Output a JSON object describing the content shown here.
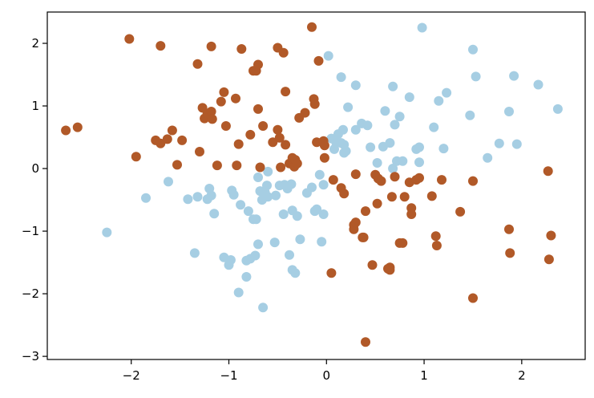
{
  "chart_data": {
    "type": "scatter",
    "title": "",
    "xlabel": "",
    "ylabel": "",
    "xlim": [
      -2.86,
      2.65
    ],
    "ylim": [
      -3.05,
      2.5
    ],
    "grid": false,
    "legend": "none",
    "x_ticks": [
      -2,
      -1,
      0,
      1,
      2
    ],
    "y_ticks": [
      -3,
      -2,
      -1,
      0,
      1,
      2
    ],
    "x_tick_labels": [
      "−2",
      "−1",
      "0",
      "1",
      "2"
    ],
    "y_tick_labels": [
      "−3",
      "−2",
      "−1",
      "0",
      "1",
      "2"
    ],
    "series": [
      {
        "color": "#a6cee3",
        "points": [
          [
            -2.25,
            -1.02
          ],
          [
            -1.85,
            -0.47
          ],
          [
            -1.62,
            -0.21
          ],
          [
            -1.42,
            -0.49
          ],
          [
            -1.35,
            -1.35
          ],
          [
            -1.32,
            -0.45
          ],
          [
            -1.22,
            -0.49
          ],
          [
            -1.2,
            -0.32
          ],
          [
            -1.18,
            -0.43
          ],
          [
            -1.15,
            -0.72
          ],
          [
            -1.05,
            -1.42
          ],
          [
            -1.0,
            -1.54
          ],
          [
            -0.98,
            -1.46
          ],
          [
            -0.97,
            -0.35
          ],
          [
            -0.95,
            -0.42
          ],
          [
            -0.9,
            -1.98
          ],
          [
            -0.88,
            -0.58
          ],
          [
            -0.82,
            -1.73
          ],
          [
            -0.82,
            -1.47
          ],
          [
            -0.8,
            -0.68
          ],
          [
            -0.78,
            -1.44
          ],
          [
            -0.75,
            -0.81
          ],
          [
            -0.73,
            -1.39
          ],
          [
            -0.72,
            -0.81
          ],
          [
            -0.7,
            -0.14
          ],
          [
            -0.7,
            -1.21
          ],
          [
            -0.68,
            -0.36
          ],
          [
            -0.66,
            -0.5
          ],
          [
            -0.65,
            -2.22
          ],
          [
            -0.63,
            -0.38
          ],
          [
            -0.61,
            -0.27
          ],
          [
            -0.6,
            -0.05
          ],
          [
            -0.6,
            -0.45
          ],
          [
            -0.53,
            -1.18
          ],
          [
            -0.52,
            -0.43
          ],
          [
            -0.48,
            -0.27
          ],
          [
            -0.44,
            -0.73
          ],
          [
            -0.43,
            -0.26
          ],
          [
            -0.4,
            -0.32
          ],
          [
            -0.38,
            -1.38
          ],
          [
            -0.36,
            -0.25
          ],
          [
            -0.35,
            -0.67
          ],
          [
            -0.35,
            -1.62
          ],
          [
            -0.32,
            -1.67
          ],
          [
            -0.3,
            -0.76
          ],
          [
            -0.27,
            -1.13
          ],
          [
            -0.2,
            -0.39
          ],
          [
            -0.15,
            -0.3
          ],
          [
            -0.12,
            -0.68
          ],
          [
            -0.1,
            -0.65
          ],
          [
            -0.07,
            -0.1
          ],
          [
            -0.05,
            -1.17
          ],
          [
            -0.03,
            -0.26
          ],
          [
            -0.03,
            -0.73
          ],
          [
            0.02,
            1.8
          ],
          [
            0.05,
            0.48
          ],
          [
            0.08,
            0.31
          ],
          [
            0.1,
            0.41
          ],
          [
            0.12,
            0.55
          ],
          [
            0.15,
            1.46
          ],
          [
            0.15,
            0.41
          ],
          [
            0.17,
            0.62
          ],
          [
            0.18,
            0.38
          ],
          [
            0.18,
            0.25
          ],
          [
            0.2,
            0.28
          ],
          [
            0.22,
            0.98
          ],
          [
            0.3,
            0.62
          ],
          [
            0.3,
            1.33
          ],
          [
            0.36,
            0.72
          ],
          [
            0.42,
            0.69
          ],
          [
            0.45,
            0.34
          ],
          [
            0.52,
            0.09
          ],
          [
            0.58,
            0.35
          ],
          [
            0.6,
            0.92
          ],
          [
            0.65,
            0.41
          ],
          [
            0.68,
            1.31
          ],
          [
            0.68,
            0.0
          ],
          [
            0.7,
            0.7
          ],
          [
            0.72,
            0.12
          ],
          [
            0.75,
            0.83
          ],
          [
            0.78,
            0.12
          ],
          [
            0.85,
            1.14
          ],
          [
            0.92,
            0.31
          ],
          [
            0.95,
            0.34
          ],
          [
            0.95,
            0.1
          ],
          [
            0.98,
            2.25
          ],
          [
            1.1,
            0.66
          ],
          [
            1.15,
            1.08
          ],
          [
            1.2,
            0.32
          ],
          [
            1.23,
            1.21
          ],
          [
            1.47,
            0.85
          ],
          [
            1.5,
            1.9
          ],
          [
            1.53,
            1.47
          ],
          [
            1.65,
            0.17
          ],
          [
            1.77,
            0.4
          ],
          [
            1.87,
            0.91
          ],
          [
            1.92,
            1.48
          ],
          [
            1.95,
            0.39
          ],
          [
            2.17,
            1.34
          ],
          [
            2.37,
            0.95
          ]
        ]
      },
      {
        "color": "#b15928",
        "points": [
          [
            -2.67,
            0.61
          ],
          [
            -2.55,
            0.66
          ],
          [
            -2.02,
            2.07
          ],
          [
            -1.95,
            0.19
          ],
          [
            -1.75,
            0.45
          ],
          [
            -1.7,
            1.96
          ],
          [
            -1.7,
            0.4
          ],
          [
            -1.63,
            0.47
          ],
          [
            -1.58,
            0.61
          ],
          [
            -1.53,
            0.06
          ],
          [
            -1.48,
            0.45
          ],
          [
            -1.32,
            1.67
          ],
          [
            -1.3,
            0.27
          ],
          [
            -1.27,
            0.97
          ],
          [
            -1.25,
            0.8
          ],
          [
            -1.22,
            0.88
          ],
          [
            -1.18,
            0.91
          ],
          [
            -1.18,
            1.95
          ],
          [
            -1.17,
            0.79
          ],
          [
            -1.12,
            0.05
          ],
          [
            -1.08,
            1.07
          ],
          [
            -1.05,
            1.22
          ],
          [
            -1.03,
            0.68
          ],
          [
            -0.93,
            1.12
          ],
          [
            -0.92,
            0.05
          ],
          [
            -0.9,
            0.39
          ],
          [
            -0.87,
            1.91
          ],
          [
            -0.78,
            0.54
          ],
          [
            -0.75,
            1.56
          ],
          [
            -0.72,
            1.56
          ],
          [
            -0.7,
            0.95
          ],
          [
            -0.7,
            1.66
          ],
          [
            -0.68,
            0.02
          ],
          [
            -0.65,
            0.68
          ],
          [
            -0.55,
            0.42
          ],
          [
            -0.5,
            0.62
          ],
          [
            -0.5,
            1.93
          ],
          [
            -0.48,
            0.49
          ],
          [
            -0.47,
            0.02
          ],
          [
            -0.44,
            1.85
          ],
          [
            -0.42,
            1.23
          ],
          [
            -0.42,
            0.38
          ],
          [
            -0.38,
            0.08
          ],
          [
            -0.35,
            0.07
          ],
          [
            -0.35,
            0.17
          ],
          [
            -0.33,
            0.03
          ],
          [
            -0.32,
            0.14
          ],
          [
            -0.3,
            0.08
          ],
          [
            -0.28,
            0.81
          ],
          [
            -0.22,
            0.89
          ],
          [
            -0.15,
            2.26
          ],
          [
            -0.13,
            1.11
          ],
          [
            -0.12,
            1.03
          ],
          [
            -0.1,
            0.42
          ],
          [
            -0.08,
            1.72
          ],
          [
            -0.03,
            0.44
          ],
          [
            -0.02,
            0.37
          ],
          [
            -0.02,
            0.17
          ],
          [
            0.05,
            -1.67
          ],
          [
            0.07,
            -0.18
          ],
          [
            0.15,
            -0.31
          ],
          [
            0.18,
            -0.4
          ],
          [
            0.28,
            -0.9
          ],
          [
            0.28,
            -0.97
          ],
          [
            0.3,
            -0.86
          ],
          [
            0.3,
            -0.09
          ],
          [
            0.37,
            -1.1
          ],
          [
            0.38,
            -1.1
          ],
          [
            0.4,
            -0.68
          ],
          [
            0.4,
            -2.77
          ],
          [
            0.47,
            -1.54
          ],
          [
            0.5,
            -0.1
          ],
          [
            0.52,
            -0.56
          ],
          [
            0.53,
            -0.16
          ],
          [
            0.56,
            -0.2
          ],
          [
            0.63,
            -1.6
          ],
          [
            0.65,
            -1.58
          ],
          [
            0.65,
            -1.62
          ],
          [
            0.67,
            -0.45
          ],
          [
            0.7,
            -0.13
          ],
          [
            0.75,
            -1.19
          ],
          [
            0.78,
            -1.19
          ],
          [
            0.8,
            -0.45
          ],
          [
            0.85,
            -0.22
          ],
          [
            0.87,
            -0.63
          ],
          [
            0.87,
            -0.73
          ],
          [
            0.92,
            -0.18
          ],
          [
            0.95,
            -0.15
          ],
          [
            1.08,
            -0.44
          ],
          [
            1.12,
            -1.08
          ],
          [
            1.13,
            -1.23
          ],
          [
            1.18,
            -0.18
          ],
          [
            1.37,
            -0.69
          ],
          [
            1.5,
            -0.2
          ],
          [
            1.5,
            -2.07
          ],
          [
            1.87,
            -0.97
          ],
          [
            1.88,
            -1.35
          ],
          [
            2.27,
            -0.04
          ],
          [
            2.28,
            -1.45
          ],
          [
            2.3,
            -1.07
          ]
        ]
      }
    ]
  }
}
